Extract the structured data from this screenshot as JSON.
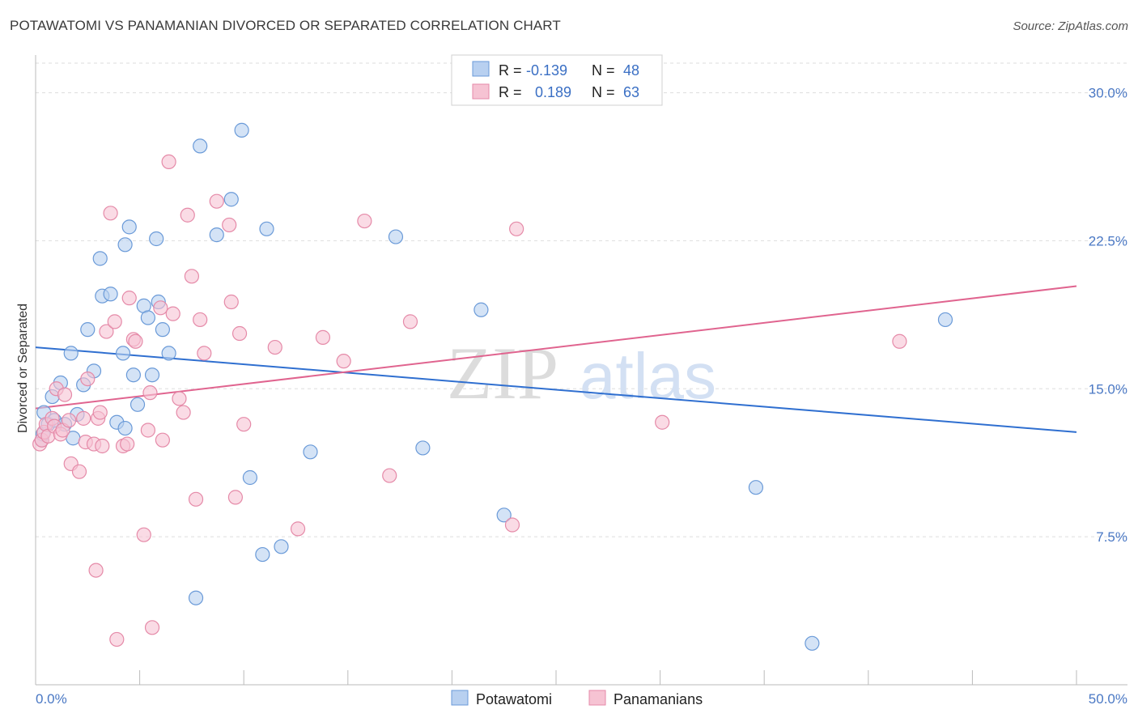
{
  "title": "POTAWATOMI VS PANAMANIAN DIVORCED OR SEPARATED CORRELATION CHART",
  "source": "Source: ZipAtlas.com",
  "watermark": {
    "zip": "ZIP",
    "atlas": "atlas"
  },
  "colors": {
    "blue_fill": "#b8d0f0",
    "blue_stroke": "#6a9ad8",
    "blue_line": "#2f6fd0",
    "pink_fill": "#f6c3d3",
    "pink_stroke": "#e58aa8",
    "pink_line": "#e0648f",
    "tick": "#4a78c4",
    "grid": "#dddddd"
  },
  "legend": {
    "rows": [
      {
        "r_label": "R =",
        "r_value": "-0.139",
        "n_label": "N =",
        "n_value": "48"
      },
      {
        "r_label": "R =",
        "r_value": "0.189",
        "n_label": "N =",
        "n_value": "63"
      }
    ]
  },
  "bottom_legend": [
    "Potawatomi",
    "Panamanians"
  ],
  "chart_data": {
    "type": "scatter",
    "ylabel": "Divorced or Separated",
    "xlim": [
      0,
      50
    ],
    "ylim": [
      0,
      31.5
    ],
    "x_tick_labels": [
      "0.0%",
      "50.0%"
    ],
    "y_ticks": [
      7.5,
      15.0,
      22.5,
      30.0
    ],
    "y_tick_labels": [
      "7.5%",
      "15.0%",
      "22.5%",
      "30.0%"
    ],
    "grid": "horizontal dashed",
    "series": [
      {
        "name": "Potawatomi",
        "trend": {
          "x": [
            0,
            50
          ],
          "y": [
            17.1,
            12.8
          ]
        },
        "points": [
          [
            0.3,
            12.4
          ],
          [
            0.35,
            12.7
          ],
          [
            0.4,
            13.8
          ],
          [
            0.6,
            13.2
          ],
          [
            0.8,
            14.6
          ],
          [
            0.9,
            13.4
          ],
          [
            1.2,
            15.3
          ],
          [
            1.4,
            13.2
          ],
          [
            1.7,
            16.8
          ],
          [
            1.8,
            12.5
          ],
          [
            2.0,
            13.7
          ],
          [
            2.3,
            15.2
          ],
          [
            2.5,
            18.0
          ],
          [
            2.8,
            15.9
          ],
          [
            3.1,
            21.6
          ],
          [
            3.2,
            19.7
          ],
          [
            3.6,
            19.8
          ],
          [
            3.9,
            13.3
          ],
          [
            4.2,
            16.8
          ],
          [
            4.3,
            22.3
          ],
          [
            4.3,
            13.0
          ],
          [
            4.5,
            23.2
          ],
          [
            4.7,
            15.7
          ],
          [
            4.9,
            14.2
          ],
          [
            5.2,
            19.2
          ],
          [
            5.4,
            18.6
          ],
          [
            5.6,
            15.7
          ],
          [
            5.8,
            22.6
          ],
          [
            5.9,
            19.4
          ],
          [
            6.1,
            18.0
          ],
          [
            6.4,
            16.8
          ],
          [
            7.9,
            27.3
          ],
          [
            8.7,
            22.8
          ],
          [
            9.4,
            24.6
          ],
          [
            9.9,
            28.1
          ],
          [
            10.3,
            10.5
          ],
          [
            10.9,
            6.6
          ],
          [
            11.1,
            23.1
          ],
          [
            11.8,
            7.0
          ],
          [
            13.2,
            11.8
          ],
          [
            17.3,
            22.7
          ],
          [
            18.6,
            12.0
          ],
          [
            21.4,
            19.0
          ],
          [
            22.5,
            8.6
          ],
          [
            34.6,
            10.0
          ],
          [
            37.3,
            2.1
          ],
          [
            43.7,
            18.5
          ],
          [
            7.7,
            4.4
          ]
        ]
      },
      {
        "name": "Panamanians",
        "trend": {
          "x": [
            0,
            50
          ],
          "y": [
            14.0,
            20.2
          ]
        },
        "points": [
          [
            0.2,
            12.2
          ],
          [
            0.3,
            12.4
          ],
          [
            0.4,
            12.8
          ],
          [
            0.5,
            13.2
          ],
          [
            0.6,
            12.6
          ],
          [
            0.8,
            13.5
          ],
          [
            0.9,
            13.1
          ],
          [
            1.0,
            15.0
          ],
          [
            1.2,
            12.7
          ],
          [
            1.3,
            12.9
          ],
          [
            1.4,
            14.7
          ],
          [
            1.6,
            13.4
          ],
          [
            1.7,
            11.2
          ],
          [
            2.1,
            10.8
          ],
          [
            2.3,
            13.5
          ],
          [
            2.4,
            12.3
          ],
          [
            2.5,
            15.5
          ],
          [
            2.9,
            5.8
          ],
          [
            2.8,
            12.2
          ],
          [
            3.0,
            13.5
          ],
          [
            3.1,
            13.8
          ],
          [
            3.2,
            12.1
          ],
          [
            3.4,
            17.9
          ],
          [
            3.6,
            23.9
          ],
          [
            3.8,
            18.4
          ],
          [
            3.9,
            2.3
          ],
          [
            4.2,
            12.1
          ],
          [
            4.4,
            12.2
          ],
          [
            4.5,
            19.6
          ],
          [
            4.7,
            17.5
          ],
          [
            4.8,
            17.4
          ],
          [
            5.2,
            7.6
          ],
          [
            5.4,
            12.9
          ],
          [
            5.5,
            14.8
          ],
          [
            5.6,
            2.9
          ],
          [
            6.0,
            19.1
          ],
          [
            6.1,
            12.4
          ],
          [
            6.4,
            26.5
          ],
          [
            6.6,
            18.8
          ],
          [
            6.9,
            14.5
          ],
          [
            7.1,
            13.8
          ],
          [
            7.3,
            23.8
          ],
          [
            7.5,
            20.7
          ],
          [
            7.7,
            9.4
          ],
          [
            7.9,
            18.5
          ],
          [
            8.1,
            16.8
          ],
          [
            8.7,
            24.5
          ],
          [
            9.3,
            23.3
          ],
          [
            9.4,
            19.4
          ],
          [
            9.6,
            9.5
          ],
          [
            9.8,
            17.8
          ],
          [
            10.0,
            13.2
          ],
          [
            11.5,
            17.1
          ],
          [
            12.6,
            7.9
          ],
          [
            13.8,
            17.6
          ],
          [
            14.8,
            16.4
          ],
          [
            15.8,
            23.5
          ],
          [
            17.0,
            10.6
          ],
          [
            18.0,
            18.4
          ],
          [
            22.9,
            8.1
          ],
          [
            23.1,
            23.1
          ],
          [
            30.1,
            13.3
          ],
          [
            41.5,
            17.4
          ]
        ]
      }
    ]
  }
}
